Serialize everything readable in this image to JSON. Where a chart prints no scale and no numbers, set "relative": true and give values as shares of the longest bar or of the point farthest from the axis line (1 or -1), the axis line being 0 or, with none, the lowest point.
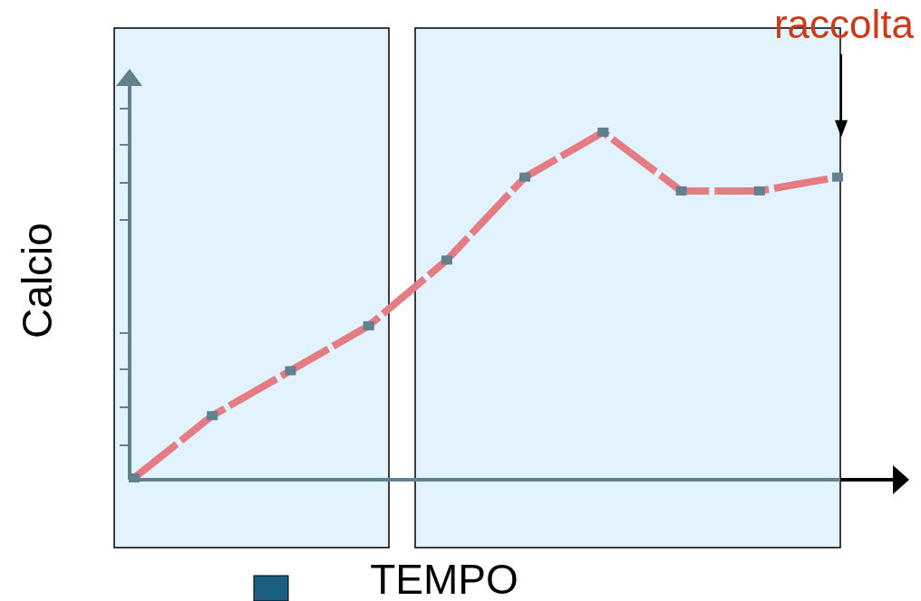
{
  "chart_data": {
    "type": "line",
    "relative": true,
    "xlabel": "TEMPO",
    "ylabel": "Calcio",
    "categories": [
      null,
      null,
      null,
      null,
      null,
      null,
      null,
      null,
      null,
      null
    ],
    "marker": "square",
    "line_style": "dashed",
    "series": [
      {
        "color": "#e57c84",
        "values": [
          0,
          0.18,
          0.31,
          0.44,
          0.63,
          0.87,
          1,
          0.83,
          0.83,
          0.87
        ]
      }
    ],
    "annotations": [
      "raccolta"
    ]
  }
}
